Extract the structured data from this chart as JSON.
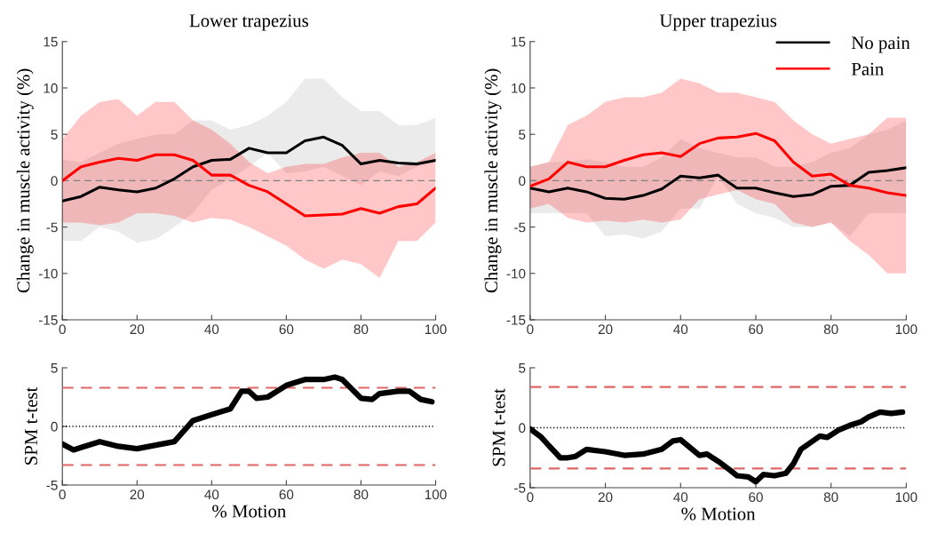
{
  "chart_data": [
    {
      "type": "line",
      "title": "Lower trapezius",
      "ylabel": "Change in muscle activity (%)",
      "xlim": [
        0,
        100
      ],
      "xticks": [
        0,
        20,
        40,
        60,
        80,
        100
      ],
      "ylim": [
        -15,
        15
      ],
      "yticks": [
        -15,
        -10,
        -5,
        0,
        5,
        10,
        15
      ],
      "grid": false,
      "legend": false,
      "line_style": "solid",
      "x": [
        0,
        5,
        10,
        15,
        20,
        25,
        30,
        35,
        40,
        45,
        50,
        55,
        60,
        65,
        70,
        75,
        80,
        85,
        90,
        95,
        100
      ],
      "series": [
        {
          "color": "#000000",
          "values": [
            -2.2,
            -1.7,
            -0.7,
            -1.0,
            -1.2,
            -0.8,
            0.2,
            1.5,
            2.2,
            2.3,
            3.5,
            3.0,
            3.0,
            4.3,
            4.7,
            3.8,
            1.8,
            2.2,
            1.9,
            1.8,
            2.2
          ],
          "upper": [
            2.3,
            2.0,
            3.0,
            4.0,
            4.5,
            5.0,
            5.0,
            6.5,
            6.5,
            5.5,
            6.0,
            7.0,
            8.5,
            11.0,
            11.0,
            9.0,
            7.5,
            7.5,
            6.0,
            6.0,
            6.8
          ],
          "lower": [
            -6.5,
            -6.5,
            -5.0,
            -5.5,
            -6.7,
            -6.3,
            -5.0,
            -3.5,
            -1.0,
            0.2,
            1.5,
            3.0,
            0.8,
            1.0,
            1.5,
            0.5,
            -0.5,
            1.0,
            0.5,
            1.5,
            2.0
          ]
        },
        {
          "color": "#ff0000",
          "values": [
            0,
            1.5,
            2.0,
            2.4,
            2.2,
            2.8,
            2.8,
            2.2,
            0.6,
            0.6,
            -0.5,
            -1.2,
            -2.5,
            -3.8,
            -3.7,
            -3.6,
            -3.0,
            -3.5,
            -2.8,
            -2.5,
            -0.8
          ],
          "upper": [
            4.5,
            7.0,
            8.5,
            8.8,
            7.0,
            8.5,
            8.5,
            6.5,
            5.5,
            4.0,
            2.0,
            0.8,
            1.5,
            1.8,
            1.8,
            2.5,
            3.0,
            3.0,
            1.5,
            2.0,
            3.0
          ],
          "lower": [
            -4.5,
            -4.5,
            -4.8,
            -4.5,
            -3.5,
            -3.5,
            -3.8,
            -4.5,
            -4.0,
            -4.2,
            -5.0,
            -6.0,
            -7.0,
            -8.5,
            -9.5,
            -8.5,
            -9.0,
            -10.5,
            -6.5,
            -6.5,
            -4.5
          ]
        }
      ],
      "ref_lines": [
        {
          "axis": "y",
          "value": 0,
          "color": "#7f7f7f",
          "line_style": "dashed"
        }
      ]
    },
    {
      "type": "line",
      "title": "Upper trapezius",
      "ylabel": "Change in muscle activity (%)",
      "xlim": [
        0,
        100
      ],
      "xticks": [
        0,
        20,
        40,
        60,
        80,
        100
      ],
      "ylim": [
        -15,
        15
      ],
      "yticks": [
        -15,
        -10,
        -5,
        0,
        5,
        10,
        15
      ],
      "grid": false,
      "legend": "top right",
      "line_style": "solid",
      "x": [
        0,
        5,
        10,
        15,
        20,
        25,
        30,
        35,
        40,
        45,
        50,
        55,
        60,
        65,
        70,
        75,
        80,
        85,
        90,
        95,
        100
      ],
      "series": [
        {
          "name": "No pain",
          "color": "#000000",
          "values": [
            -0.8,
            -1.2,
            -0.8,
            -1.2,
            -1.9,
            -2.0,
            -1.6,
            -0.9,
            0.5,
            0.3,
            0.6,
            -0.8,
            -0.8,
            -1.3,
            -1.7,
            -1.5,
            -0.6,
            -0.5,
            0.9,
            1.1,
            1.4
          ],
          "upper": [
            1.5,
            2.0,
            2.0,
            2.3,
            2.0,
            1.5,
            1.5,
            2.5,
            4.5,
            3.5,
            3.0,
            2.5,
            2.5,
            1.5,
            1.5,
            2.0,
            3.0,
            3.5,
            5.0,
            5.5,
            6.5
          ],
          "lower": [
            -3.5,
            -3.5,
            -3.5,
            -3.5,
            -6.0,
            -5.8,
            -6.2,
            -5.5,
            -3.0,
            -3.0,
            0.5,
            -2.5,
            -3.5,
            -4.0,
            -5.0,
            -5.0,
            -4.5,
            -6.0,
            -3.5,
            -3.5,
            -3.5
          ]
        },
        {
          "name": "Pain",
          "color": "#ff0000",
          "values": [
            -0.6,
            0.2,
            2.0,
            1.5,
            1.5,
            2.2,
            2.8,
            3.0,
            2.6,
            4.0,
            4.6,
            4.7,
            5.1,
            4.3,
            2.0,
            0.5,
            0.7,
            -0.5,
            -0.8,
            -1.3,
            -1.6
          ],
          "upper": [
            1.5,
            2.0,
            6.0,
            7.0,
            8.5,
            9.0,
            9.0,
            9.5,
            11.0,
            10.5,
            9.5,
            9.5,
            9.0,
            8.5,
            6.5,
            5.0,
            4.0,
            4.5,
            5.0,
            6.8,
            6.8
          ],
          "lower": [
            -3.0,
            -2.5,
            -4.0,
            -4.5,
            -4.3,
            -4.5,
            -4.2,
            -4.5,
            -4.2,
            -2.0,
            -1.5,
            -1.0,
            -2.0,
            -2.5,
            -4.5,
            -5.0,
            -4.5,
            -6.5,
            -8.0,
            -10.0,
            -10.0
          ]
        }
      ],
      "ref_lines": [
        {
          "axis": "y",
          "value": 0,
          "color": "#7f7f7f",
          "line_style": "dashed"
        }
      ]
    },
    {
      "type": "line",
      "ylabel": "SPM t-test",
      "xlabel": "% Motion",
      "xlim": [
        0,
        100
      ],
      "xticks": [
        0,
        20,
        40,
        60,
        80,
        100
      ],
      "ylim": [
        -5,
        5
      ],
      "yticks": [
        -5,
        0,
        5
      ],
      "grid": false,
      "legend": false,
      "line_style": "solid",
      "series": [
        {
          "color": "#000000",
          "x": [
            0,
            3,
            5,
            10,
            15,
            20,
            25,
            30,
            35,
            40,
            45,
            48,
            50,
            52,
            55,
            60,
            65,
            70,
            73,
            75,
            80,
            83,
            85,
            90,
            93,
            96,
            99
          ],
          "values": [
            -1.5,
            -2.0,
            -1.8,
            -1.3,
            -1.7,
            -1.9,
            -1.6,
            -1.3,
            0.5,
            1.0,
            1.5,
            3.0,
            3.0,
            2.4,
            2.5,
            3.5,
            4.0,
            4.0,
            4.2,
            4.0,
            2.4,
            2.3,
            2.8,
            3.0,
            3.0,
            2.3,
            2.1
          ]
        }
      ],
      "ref_lines": [
        {
          "axis": "y",
          "value": 0,
          "color": "#000000",
          "line_style": "dotted"
        },
        {
          "axis": "y",
          "value": 3.3,
          "color": "#e06666",
          "line_style": "dashed"
        },
        {
          "axis": "y",
          "value": -3.3,
          "color": "#e06666",
          "line_style": "dashed"
        }
      ]
    },
    {
      "type": "line",
      "ylabel": "SPM t-test",
      "xlabel": "% Motion",
      "xlim": [
        0,
        100
      ],
      "xticks": [
        0,
        20,
        40,
        60,
        80,
        100
      ],
      "ylim": [
        -5,
        5
      ],
      "yticks": [
        -5,
        0,
        5
      ],
      "grid": false,
      "legend": false,
      "line_style": "solid",
      "series": [
        {
          "color": "#000000",
          "x": [
            0,
            3,
            5,
            8,
            10,
            12,
            15,
            20,
            25,
            30,
            35,
            38,
            40,
            45,
            47,
            50,
            53,
            55,
            58,
            60,
            62,
            65,
            68,
            70,
            72,
            77,
            79,
            82,
            85,
            88,
            90,
            93,
            96,
            99
          ],
          "values": [
            -0.1,
            -0.8,
            -1.5,
            -2.5,
            -2.5,
            -2.4,
            -1.8,
            -2.0,
            -2.3,
            -2.2,
            -1.8,
            -1.1,
            -1.0,
            -2.3,
            -2.2,
            -2.8,
            -3.5,
            -4.0,
            -4.1,
            -4.5,
            -3.9,
            -4.0,
            -3.8,
            -3.0,
            -1.8,
            -0.7,
            -0.8,
            -0.2,
            0.2,
            0.5,
            0.9,
            1.3,
            1.2,
            1.3
          ]
        }
      ],
      "ref_lines": [
        {
          "axis": "y",
          "value": 0,
          "color": "#000000",
          "line_style": "dotted"
        },
        {
          "axis": "y",
          "value": 3.4,
          "color": "#e06666",
          "line_style": "dashed"
        },
        {
          "axis": "y",
          "value": -3.4,
          "color": "#e06666",
          "line_style": "dashed"
        }
      ]
    }
  ]
}
